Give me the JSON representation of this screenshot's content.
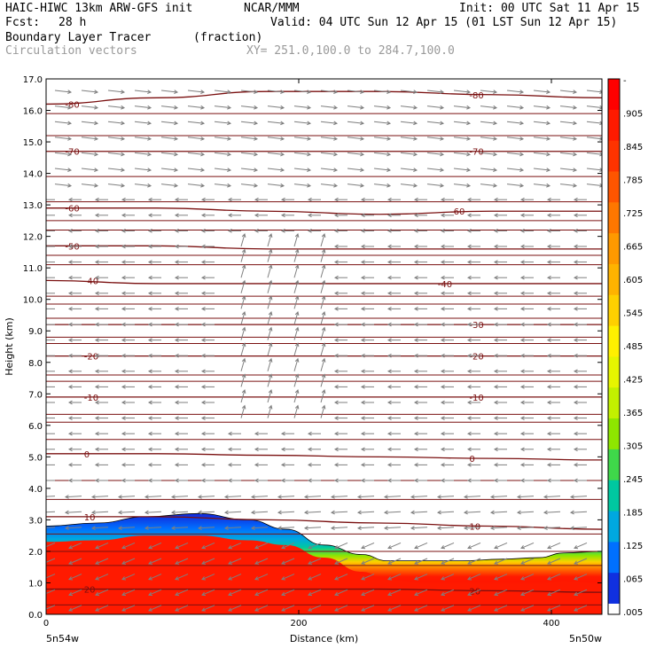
{
  "header": {
    "model_title": "HAIC-HIWC 13km ARW-GFS init",
    "org": "NCAR/MMM",
    "init_time": "Init: 00 UTC Sat 11 Apr 15",
    "fcst_label": "Fcst:",
    "fcst_value": "28 h",
    "valid_time": "Valid: 04 UTC Sun 12 Apr 15 (01 LST Sun 12 Apr 15)",
    "field_name": "Boundary Layer Tracer",
    "field_units": "(fraction)",
    "overlay_name": "Circulation vectors",
    "xsec_endpoints": "XY= 251.0,100.0 to 284.7,100.0"
  },
  "colors": {
    "tracer_high": "#ff1a00",
    "isotherm": "#7a1010",
    "vector": "#7f7f7f",
    "axis": "#000000"
  },
  "chart_data": {
    "type": "heatmap",
    "xlabel": "Distance (km)",
    "ylabel": "Height (km)",
    "xlim": [
      0,
      440
    ],
    "ylim": [
      0,
      17
    ],
    "x_ticks": [
      0,
      200,
      400
    ],
    "x_tick_labels": [
      "0",
      "200",
      "400"
    ],
    "y_ticks": [
      0,
      1,
      2,
      3,
      4,
      5,
      6,
      7,
      8,
      9,
      10,
      11,
      12,
      13,
      14,
      15,
      16,
      17
    ],
    "y_tick_labels": [
      "0.0",
      "1.0",
      "2.0",
      "3.0",
      "4.0",
      "5.0",
      "6.0",
      "7.0",
      "8.0",
      "9.0",
      "10.0",
      "11.0",
      "12.0",
      "13.0",
      "14.0",
      "15.0",
      "16.0",
      "17.0"
    ],
    "left_endpoint": "5n54w",
    "right_endpoint": "5n50w",
    "colorbar": {
      "labels": [
        "-",
        ".905",
        ".845",
        ".785",
        ".725",
        ".665",
        ".605",
        ".545",
        ".485",
        ".425",
        ".365",
        ".305",
        ".245",
        ".185",
        ".125",
        ".065",
        ".005"
      ],
      "colors": [
        "#ff0000",
        "#ff1a00",
        "#ff3300",
        "#ff5500",
        "#ff7700",
        "#ff9900",
        "#ffb300",
        "#ffd000",
        "#fff000",
        "#e6f500",
        "#c2f000",
        "#8ee600",
        "#3fd84a",
        "#00c8a0",
        "#00a8e0",
        "#0070ff",
        "#1030e0"
      ],
      "bottom_color": "#ffffff"
    },
    "tracer_top_km": {
      "x": [
        0,
        40,
        80,
        120,
        160,
        190,
        220,
        250,
        270,
        300,
        330,
        360,
        390,
        410,
        440
      ],
      "top_km": [
        2.8,
        2.9,
        3.1,
        3.2,
        3.0,
        2.7,
        2.2,
        1.9,
        1.7,
        1.7,
        1.7,
        1.75,
        1.8,
        1.95,
        2.0
      ],
      "red_top_km": [
        2.3,
        2.35,
        2.5,
        2.5,
        2.35,
        2.2,
        1.8,
        1.35,
        1.1,
        1.0,
        1.0,
        1.0,
        1.0,
        1.05,
        1.0
      ]
    },
    "isotherms": [
      {
        "label": "-80",
        "y": [
          16.2,
          16.4,
          16.6,
          16.6,
          16.5,
          16.4
        ],
        "label_x": [
          15,
          335
        ]
      },
      {
        "label": "-70",
        "y": [
          14.7,
          14.7,
          14.7,
          14.7,
          14.7,
          14.7
        ],
        "label_x": [
          15,
          335
        ]
      },
      {
        "label": "-60",
        "y": [
          12.9,
          12.9,
          12.8,
          12.7,
          12.8,
          12.8
        ],
        "label_x": [
          15,
          320
        ]
      },
      {
        "label": "-50",
        "y": [
          11.7,
          11.7,
          11.6,
          11.6,
          11.6,
          11.6
        ],
        "label_x": [
          15,
          -1
        ]
      },
      {
        "label": "-40",
        "y": [
          10.6,
          10.5,
          10.5,
          10.5,
          10.5,
          10.5
        ],
        "label_x": [
          30,
          310
        ]
      },
      {
        "label": "-30",
        "y": [
          9.2,
          9.2,
          9.2,
          9.2,
          9.2,
          9.2
        ],
        "label_x": [
          -1,
          335
        ]
      },
      {
        "label": "-20",
        "y": [
          8.2,
          8.2,
          8.2,
          8.2,
          8.2,
          8.2
        ],
        "label_x": [
          30,
          335
        ]
      },
      {
        "label": "-10",
        "y": [
          6.9,
          6.9,
          6.9,
          6.9,
          6.9,
          6.9
        ],
        "label_x": [
          30,
          335
        ]
      },
      {
        "label": "0",
        "y": [
          5.1,
          5.1,
          5.05,
          5.0,
          4.95,
          4.9
        ],
        "label_x": [
          30,
          335
        ]
      },
      {
        "label": "10",
        "y": [
          3.1,
          3.1,
          3.0,
          2.9,
          2.8,
          2.7
        ],
        "label_x": [
          30,
          335
        ]
      },
      {
        "label": "20",
        "y": [
          0.8,
          0.8,
          0.8,
          0.8,
          0.75,
          0.7
        ],
        "label_x": [
          30,
          335
        ]
      }
    ],
    "isotherm_x": [
      0,
      88,
      176,
      264,
      352,
      440
    ],
    "extra_contour_levels_km": [
      0.3,
      1.55,
      2.0,
      2.55,
      3.65,
      4.25,
      5.55,
      6.1,
      6.35,
      7.4,
      7.6,
      8.6,
      8.8,
      9.4,
      9.85,
      10.1,
      11.1,
      11.4,
      12.2,
      12.5,
      13.1,
      13.9,
      15.2,
      15.9
    ]
  }
}
